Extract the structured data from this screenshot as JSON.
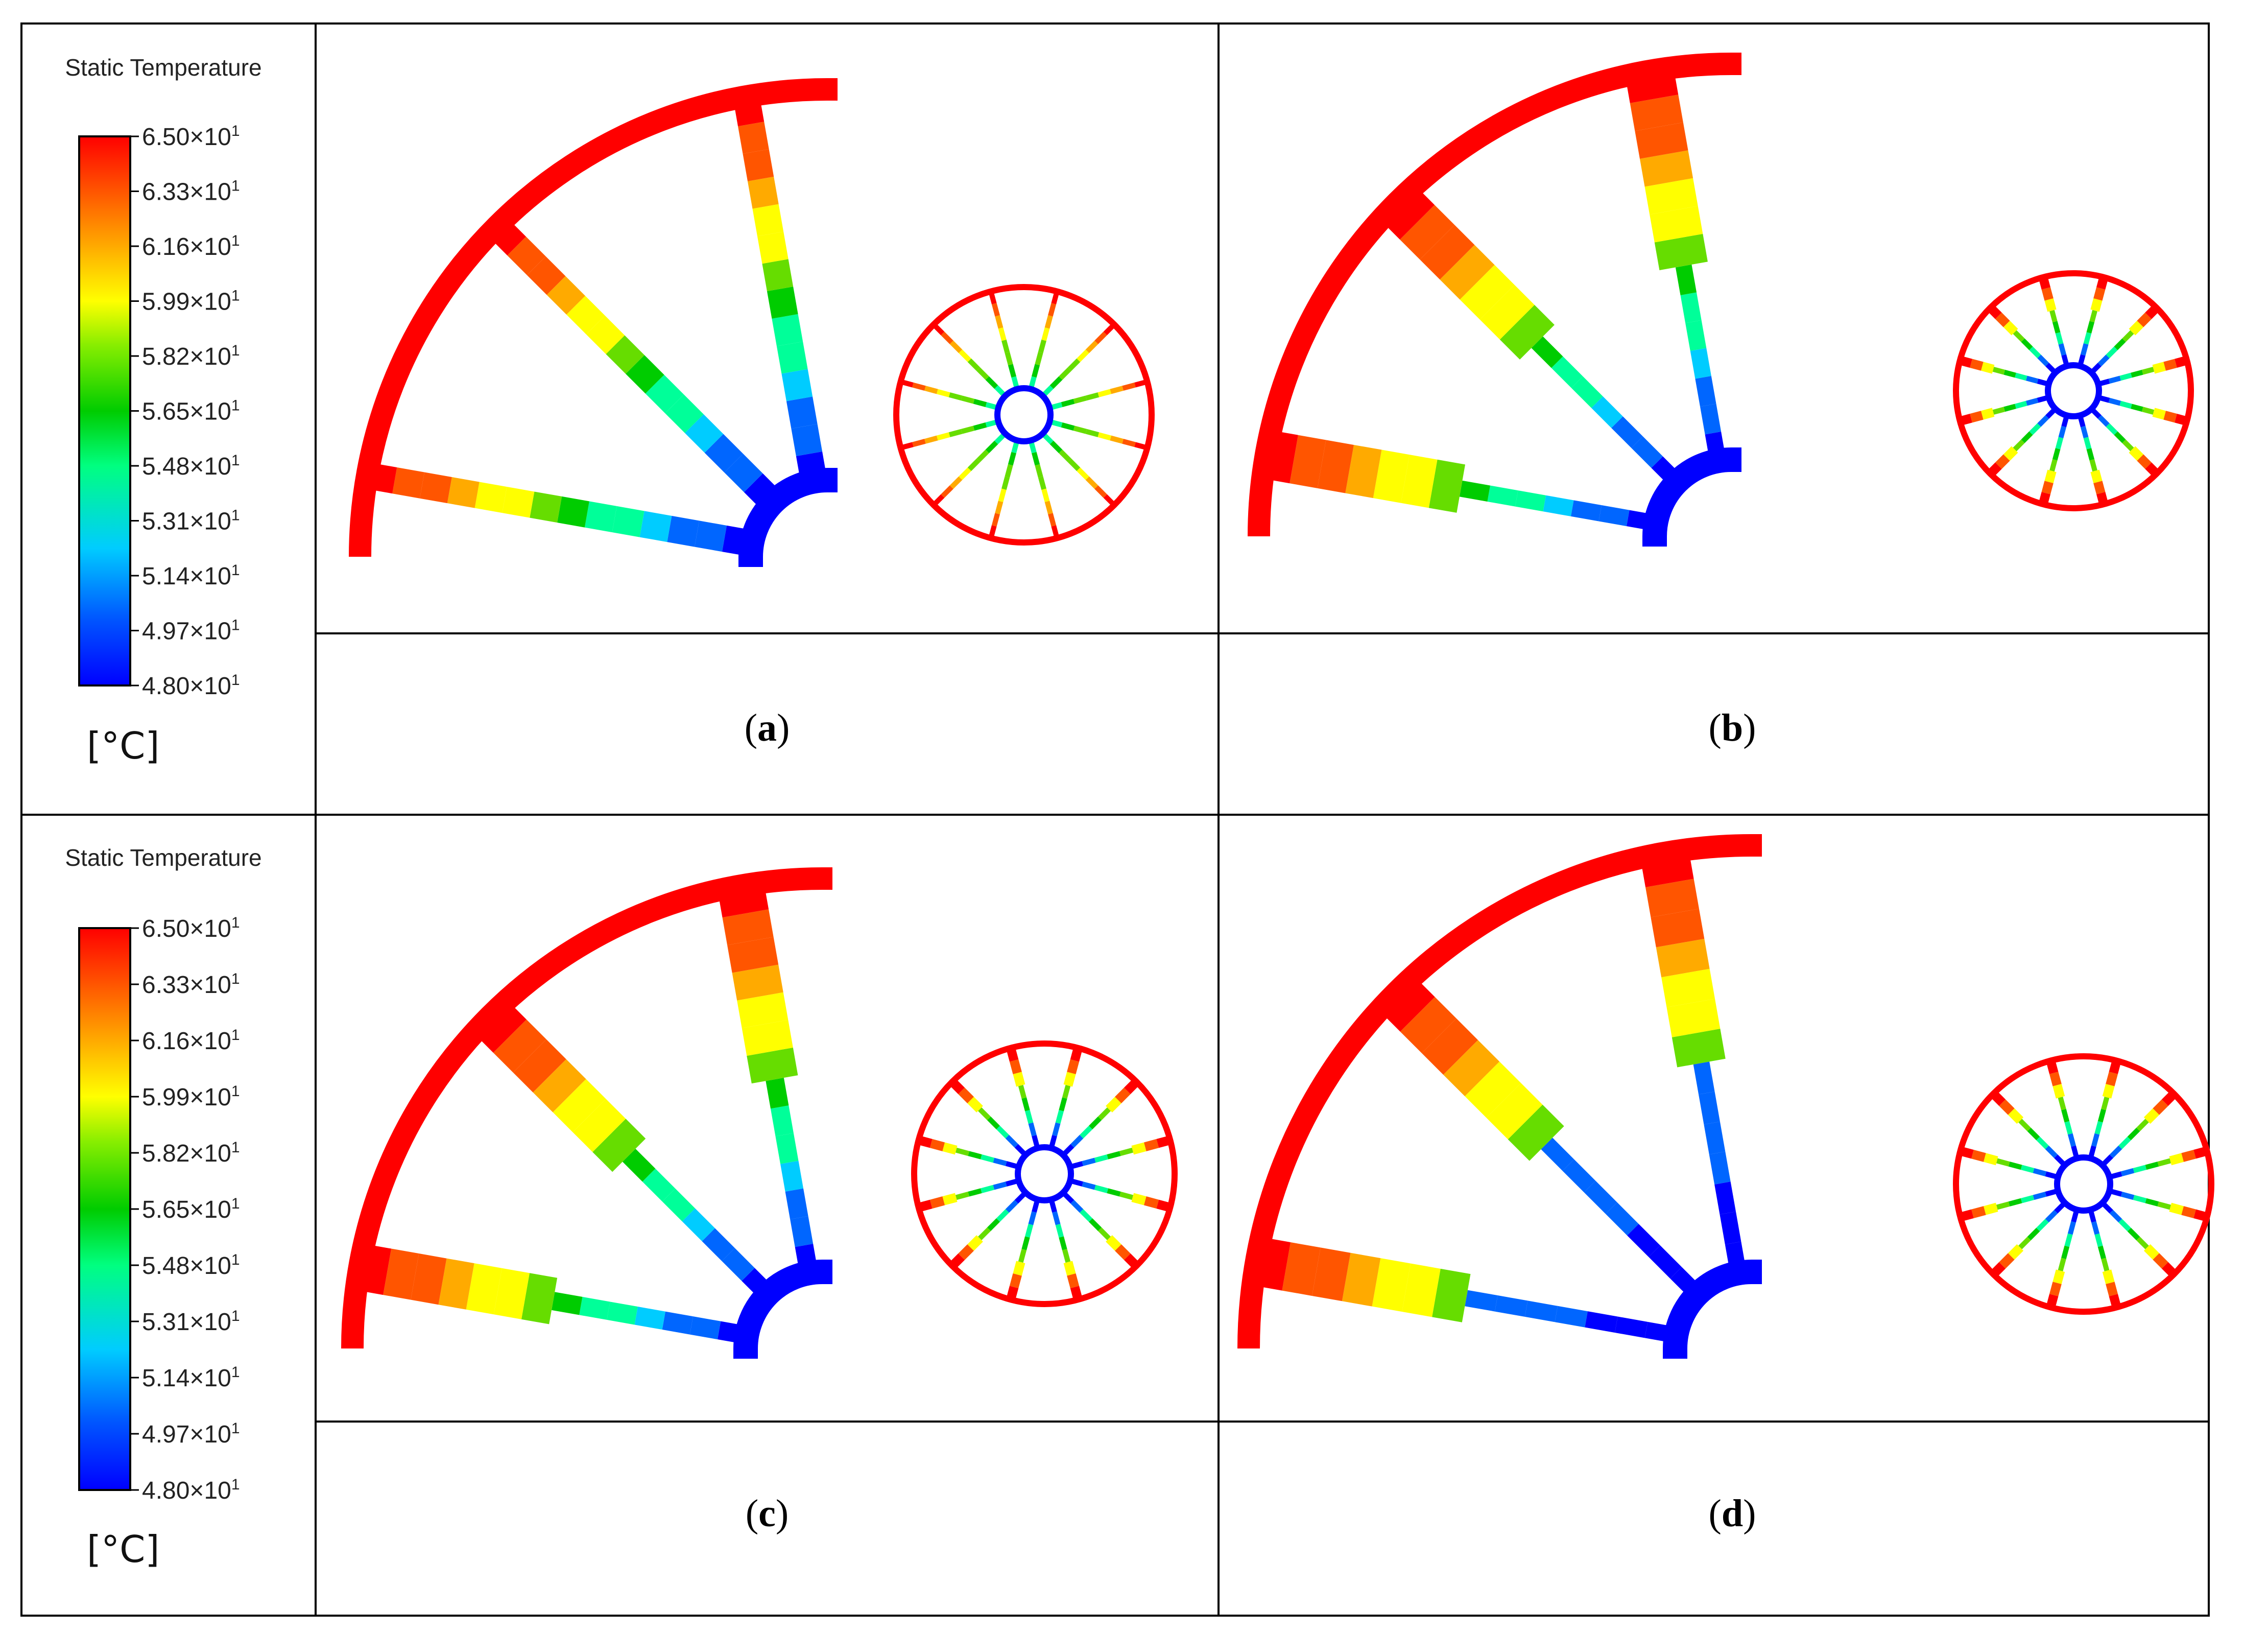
{
  "legends": [
    {
      "title": "Static Temperature",
      "unit": "[°C]",
      "ticks": [
        {
          "mantissa": "6.50×10",
          "exp": "1"
        },
        {
          "mantissa": "6.33×10",
          "exp": "1"
        },
        {
          "mantissa": "6.16×10",
          "exp": "1"
        },
        {
          "mantissa": "5.99×10",
          "exp": "1"
        },
        {
          "mantissa": "5.82×10",
          "exp": "1"
        },
        {
          "mantissa": "5.65×10",
          "exp": "1"
        },
        {
          "mantissa": "5.48×10",
          "exp": "1"
        },
        {
          "mantissa": "5.31×10",
          "exp": "1"
        },
        {
          "mantissa": "5.14×10",
          "exp": "1"
        },
        {
          "mantissa": "4.97×10",
          "exp": "1"
        },
        {
          "mantissa": "4.80×10",
          "exp": "1"
        }
      ]
    },
    {
      "title": "Static Temperature",
      "unit": "[°C]",
      "ticks": [
        {
          "mantissa": "6.50×10",
          "exp": "1"
        },
        {
          "mantissa": "6.33×10",
          "exp": "1"
        },
        {
          "mantissa": "6.16×10",
          "exp": "1"
        },
        {
          "mantissa": "5.99×10",
          "exp": "1"
        },
        {
          "mantissa": "5.82×10",
          "exp": "1"
        },
        {
          "mantissa": "5.65×10",
          "exp": "1"
        },
        {
          "mantissa": "5.48×10",
          "exp": "1"
        },
        {
          "mantissa": "5.31×10",
          "exp": "1"
        },
        {
          "mantissa": "5.14×10",
          "exp": "1"
        },
        {
          "mantissa": "4.97×10",
          "exp": "1"
        },
        {
          "mantissa": "4.80×10",
          "exp": "1"
        }
      ]
    }
  ],
  "colormap": [
    "#0000ff",
    "#0066ff",
    "#00ccff",
    "#00ff99",
    "#00cc00",
    "#66dd00",
    "#ffff00",
    "#ffaa00",
    "#ff5500",
    "#ff0000"
  ],
  "ring_color": "#ff0000",
  "hub_color": "#0000ff",
  "panels": [
    {
      "letter": "a"
    },
    {
      "letter": "b"
    },
    {
      "letter": "c"
    },
    {
      "letter": "d"
    }
  ]
}
